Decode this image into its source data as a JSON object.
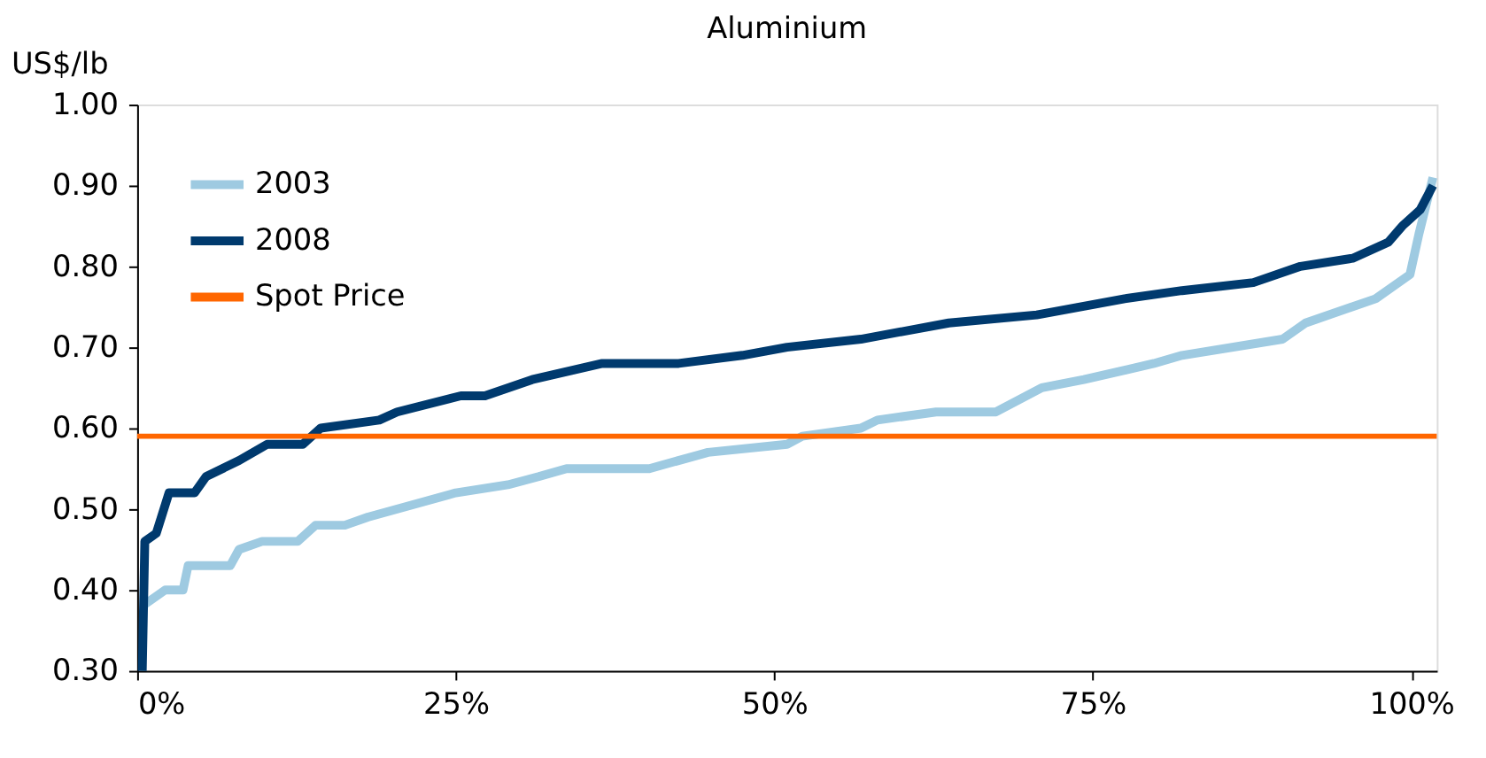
{
  "chart_data": {
    "type": "line",
    "title": "Aluminium",
    "ylabel": "US$/lb",
    "xlim": [
      0,
      102
    ],
    "ylim": [
      0.3,
      1.0
    ],
    "xticks": [
      {
        "value": 0,
        "label": "0%"
      },
      {
        "value": 25,
        "label": "25%"
      },
      {
        "value": 50,
        "label": "50%"
      },
      {
        "value": 75,
        "label": "75%"
      },
      {
        "value": 100,
        "label": "100%"
      }
    ],
    "yticks": [
      {
        "value": 0.3,
        "label": "0.30"
      },
      {
        "value": 0.4,
        "label": "0.40"
      },
      {
        "value": 0.5,
        "label": "0.50"
      },
      {
        "value": 0.6,
        "label": "0.60"
      },
      {
        "value": 0.7,
        "label": "0.70"
      },
      {
        "value": 0.8,
        "label": "0.80"
      },
      {
        "value": 0.9,
        "label": "0.90"
      },
      {
        "value": 1.0,
        "label": "1.00"
      }
    ],
    "grid": false,
    "legend": "top left",
    "marker": "none",
    "line_style": "solid",
    "series": [
      {
        "name": "2003",
        "color": "#9ecae1",
        "x": [
          0.4,
          2.2,
          3.6,
          4.0,
          5.7,
          7.3,
          8.0,
          9.8,
          12.6,
          14.0,
          16.3,
          18.1,
          22.7,
          25.0,
          29.1,
          31.5,
          33.7,
          40.2,
          44.8,
          51.0,
          52.2,
          56.8,
          58.1,
          62.7,
          67.4,
          71.0,
          74.3,
          79.8,
          82.0,
          89.9,
          91.7,
          97.2,
          99.9,
          100.6,
          101.7
        ],
        "values": [
          0.38,
          0.4,
          0.4,
          0.43,
          0.43,
          0.43,
          0.45,
          0.46,
          0.46,
          0.48,
          0.48,
          0.49,
          0.51,
          0.52,
          0.53,
          0.54,
          0.55,
          0.55,
          0.57,
          0.58,
          0.59,
          0.6,
          0.61,
          0.62,
          0.62,
          0.65,
          0.66,
          0.68,
          0.69,
          0.71,
          0.73,
          0.76,
          0.79,
          0.84,
          0.91
        ]
      },
      {
        "name": "2008",
        "color": "#003a6e",
        "x": [
          0.4,
          0.6,
          1.5,
          2.5,
          4.5,
          5.4,
          8.0,
          10.2,
          13.0,
          14.4,
          19.0,
          20.4,
          25.4,
          27.3,
          31.0,
          36.5,
          42.5,
          47.5,
          51.0,
          56.8,
          63.7,
          70.6,
          77.5,
          82.0,
          87.6,
          91.3,
          95.4,
          98.2,
          99.3,
          100.7,
          101.7
        ],
        "values": [
          0.3,
          0.46,
          0.47,
          0.52,
          0.52,
          0.54,
          0.56,
          0.58,
          0.58,
          0.6,
          0.61,
          0.62,
          0.64,
          0.64,
          0.66,
          0.68,
          0.68,
          0.69,
          0.7,
          0.71,
          0.73,
          0.74,
          0.76,
          0.77,
          0.78,
          0.8,
          0.81,
          0.83,
          0.85,
          0.87,
          0.9
        ]
      }
    ],
    "ref_lines": [
      {
        "axis": "y",
        "value": 0.59,
        "label": "Spot Price",
        "color": "#ff6600"
      }
    ]
  }
}
